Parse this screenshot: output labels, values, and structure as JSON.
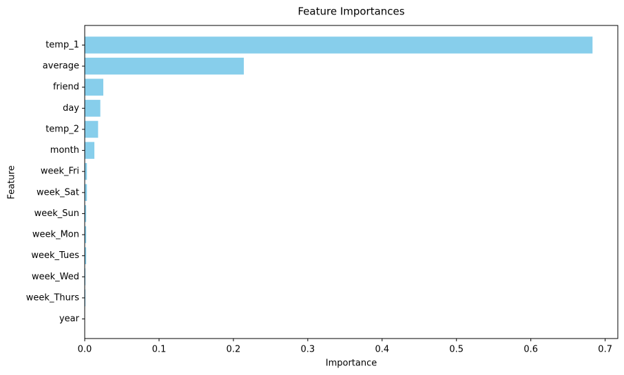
{
  "chart_data": {
    "type": "barh",
    "title": "Feature Importances",
    "x_label": "Importance",
    "y_label": "Feature",
    "categories": [
      "temp_1",
      "average",
      "friend",
      "day",
      "temp_2",
      "month",
      "week_Fri",
      "week_Sat",
      "week_Sun",
      "week_Mon",
      "week_Tues",
      "week_Wed",
      "week_Thurs",
      "year"
    ],
    "values": [
      0.683,
      0.214,
      0.025,
      0.021,
      0.018,
      0.013,
      0.003,
      0.003,
      0.002,
      0.002,
      0.002,
      0.001,
      0.001,
      0
    ],
    "color": "#87ceeb",
    "xlim": [
      0,
      0.717
    ],
    "xticks": [
      {
        "value": 0,
        "label": "0.0"
      },
      0.1,
      0.2,
      0.3,
      0.4,
      0.5,
      0.6,
      0.7
    ],
    "grid": false
  }
}
